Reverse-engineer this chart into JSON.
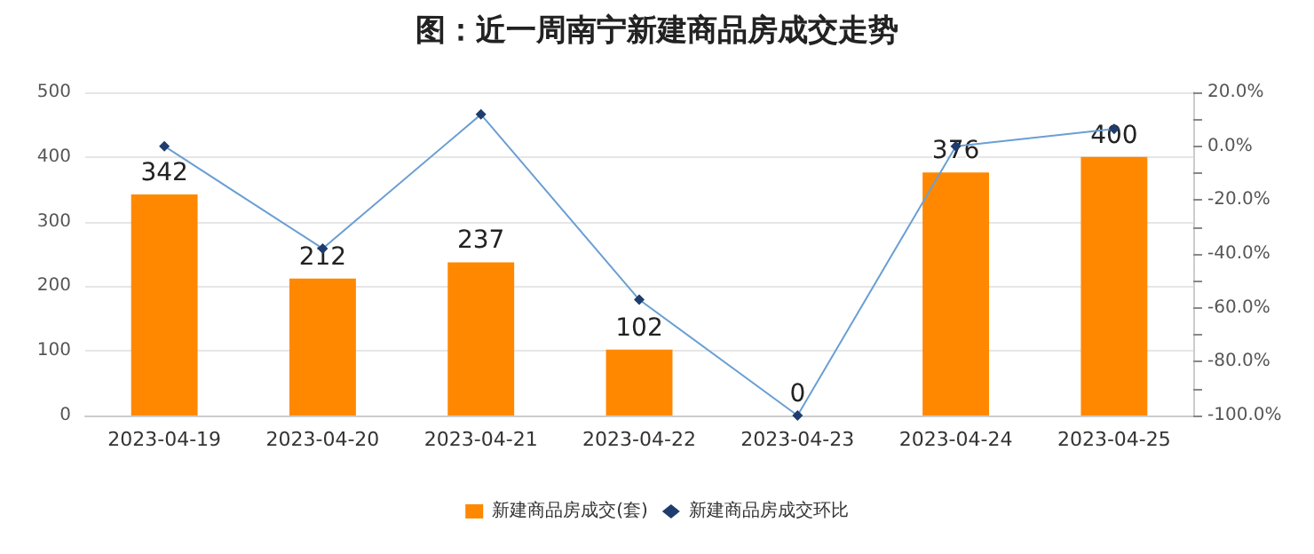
{
  "chart_data": {
    "type": "bar",
    "title": "图：近一周南宁新建商品房成交走势",
    "categories": [
      "2023-04-19",
      "2023-04-20",
      "2023-04-21",
      "2023-04-22",
      "2023-04-23",
      "2023-04-24",
      "2023-04-25"
    ],
    "series": [
      {
        "name": "新建商品房成交(套)",
        "color": "#ff8800",
        "values": [
          342,
          212,
          237,
          102,
          0,
          376,
          400
        ],
        "data_labels": true
      },
      {
        "name": "新建商品房成交环比",
        "type": "line",
        "axis": "y2",
        "color": "#6a9fd4",
        "marker": "diamond",
        "values": [
          0,
          -38,
          11.8,
          -57,
          -100,
          0,
          6.4
        ]
      }
    ],
    "ylim": [
      0,
      500
    ],
    "yticks": [
      0,
      100,
      200,
      300,
      400,
      500
    ],
    "y2lim": [
      -100,
      20
    ],
    "y2ticks": [
      {
        "value": -100,
        "label": "-100.0%"
      },
      {
        "value": -90,
        "label": null
      },
      {
        "value": -80,
        "label": "-80.0%"
      },
      {
        "value": -70,
        "label": null
      },
      {
        "value": -60,
        "label": "-60.0%"
      },
      {
        "value": -50,
        "label": null
      },
      {
        "value": -40,
        "label": "-40.0%"
      },
      {
        "value": -30,
        "label": null
      },
      {
        "value": -20,
        "label": "-20.0%"
      },
      {
        "value": -10,
        "label": null
      },
      {
        "value": 0,
        "label": "0.0%"
      },
      {
        "value": 10,
        "label": null
      },
      {
        "value": 20,
        "label": "20.0%"
      }
    ],
    "grid": "y",
    "legend": "bottom"
  }
}
